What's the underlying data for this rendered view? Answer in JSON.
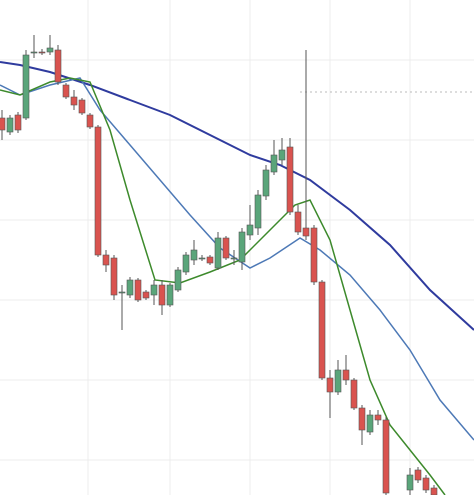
{
  "chart_data": {
    "type": "candlestick",
    "x": [
      0,
      1,
      2,
      3,
      4,
      5,
      6,
      7,
      8,
      9,
      10,
      11,
      12,
      13,
      14,
      15,
      16,
      17,
      18,
      19,
      20,
      21,
      22,
      23,
      24,
      25,
      26,
      27,
      28,
      29,
      30,
      31,
      32,
      33,
      34,
      35,
      36,
      37,
      38,
      39,
      40,
      41,
      42,
      43,
      44,
      45,
      46,
      47,
      48,
      49,
      50,
      51,
      52,
      53,
      54
    ],
    "open": [
      377,
      363,
      380,
      377,
      443,
      443,
      443,
      445,
      410,
      398,
      395,
      380,
      368,
      240,
      237,
      203,
      200,
      215,
      203,
      200,
      210,
      190,
      205,
      223,
      235,
      237,
      238,
      227,
      257,
      237,
      233,
      260,
      267,
      299,
      323,
      335,
      348,
      283,
      267,
      267,
      213,
      117,
      103,
      125,
      115,
      87,
      63,
      80,
      75,
      null,
      null,
      5,
      25,
      17,
      7
    ],
    "high": [
      385,
      380,
      383,
      445,
      460,
      446,
      460,
      450,
      412,
      405,
      397,
      382,
      370,
      245,
      240,
      210,
      218,
      217,
      205,
      215,
      215,
      212,
      228,
      243,
      255,
      240,
      240,
      263,
      259,
      245,
      267,
      290,
      305,
      330,
      355,
      357,
      357,
      290,
      445,
      270,
      215,
      125,
      135,
      140,
      117,
      90,
      85,
      85,
      78,
      null,
      null,
      27,
      28,
      20,
      10
    ],
    "low": [
      355,
      360,
      362,
      375,
      437,
      440,
      440,
      410,
      396,
      385,
      380,
      366,
      238,
      223,
      195,
      165,
      197,
      193,
      195,
      190,
      180,
      188,
      203,
      220,
      230,
      234,
      230,
      225,
      235,
      230,
      225,
      255,
      260,
      295,
      320,
      330,
      280,
      260,
      255,
      210,
      115,
      77,
      100,
      110,
      85,
      50,
      60,
      70,
      0,
      null,
      null,
      0,
      12,
      2,
      0
    ],
    "close": [
      365,
      377,
      365,
      440,
      443,
      442,
      447,
      413,
      398,
      390,
      382,
      368,
      240,
      230,
      200,
      203,
      215,
      195,
      197,
      210,
      190,
      210,
      225,
      240,
      245,
      237,
      232,
      257,
      237,
      237,
      263,
      270,
      300,
      325,
      340,
      345,
      283,
      263,
      259,
      213,
      117,
      103,
      125,
      115,
      87,
      65,
      80,
      75,
      2,
      null,
      null,
      20,
      15,
      5,
      0
    ],
    "up_color": "#5aa57a",
    "down_color": "#d9534f",
    "series": [
      {
        "color": "#2f3b9e",
        "x": [
          -0.25,
          2.25,
          6,
          11,
          16,
          21,
          26,
          31,
          34.75,
          38.5,
          43.5,
          48.5,
          53.5,
          59
        ],
        "values": [
          433,
          430,
          423,
          410,
          395,
          380,
          360,
          340,
          330,
          315,
          285,
          250,
          205,
          165
        ]
      },
      {
        "color": "#4d79b6",
        "x": [
          -0.25,
          2.25,
          6,
          9.75,
          12.25,
          16,
          19.75,
          23.5,
          27.25,
          31,
          33.5,
          37.25,
          39.75,
          43.5,
          47.25,
          51,
          54.75,
          59
        ],
        "values": [
          410,
          400,
          410,
          417,
          385,
          350,
          315,
          280,
          247,
          227,
          237,
          257,
          245,
          220,
          185,
          145,
          95,
          55
        ]
      },
      {
        "color": "#3d8a2c",
        "x": [
          -0.25,
          2.25,
          6,
          8.5,
          11,
          13.5,
          16,
          19.125,
          22.25,
          26,
          29.75,
          33.5,
          36.625,
          38.5,
          41,
          43.5,
          46,
          48.5,
          51,
          53.5,
          55.375
        ],
        "values": [
          405,
          400,
          413,
          417,
          413,
          365,
          295,
          215,
          212,
          223,
          235,
          265,
          290,
          295,
          255,
          185,
          115,
          70,
          45,
          20,
          0
        ]
      }
    ],
    "xlim": [
      -0.25,
      59
    ],
    "ylim": [
      0,
      495
    ],
    "xticks": [
      10.75,
      21,
      31,
      41,
      51
    ],
    "yticks": [
      435,
      355,
      275,
      195,
      115,
      35
    ],
    "reference_line": 403,
    "grid": true
  }
}
